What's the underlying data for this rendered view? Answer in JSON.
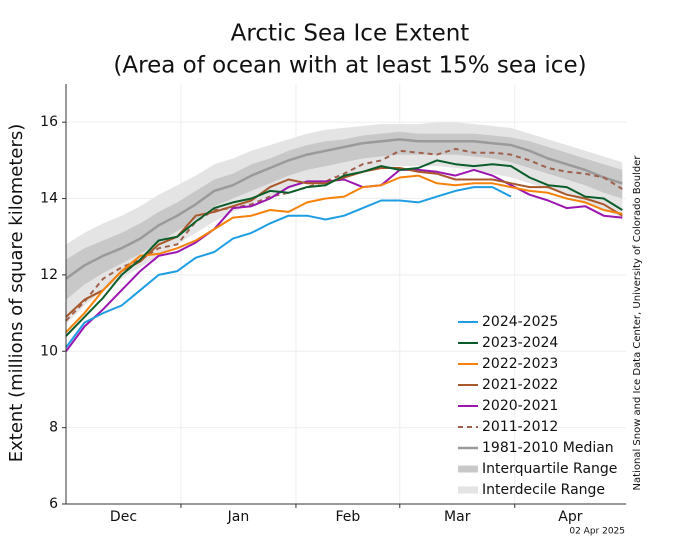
{
  "chart_data": {
    "type": "line",
    "title": "Arctic Sea Ice Extent",
    "subtitle": "(Area of ocean with at least 15% sea ice)",
    "ylabel": "Extent (millions of square kilometers)",
    "credit": "National Snow and Ice Data Center, University of Colorado Boulder",
    "date_stamp": "02 Apr 2025",
    "legend": "lower right",
    "grid": true,
    "xlim": [
      0,
      151
    ],
    "xticks": [
      {
        "value": 15.5,
        "label": "Dec"
      },
      {
        "value": 46.5,
        "label": "Jan"
      },
      {
        "value": 76,
        "label": "Feb"
      },
      {
        "value": 105.5,
        "label": "Mar"
      },
      {
        "value": 136,
        "label": "Apr"
      }
    ],
    "xgrid": [
      31,
      62,
      90,
      121
    ],
    "ylim": [
      6,
      17
    ],
    "yticks": [
      6,
      8,
      10,
      12,
      14,
      16
    ],
    "x": [
      0,
      5,
      10,
      15,
      20,
      25,
      30,
      35,
      40,
      45,
      50,
      55,
      60,
      65,
      70,
      75,
      80,
      85,
      90,
      95,
      100,
      105,
      110,
      115,
      120,
      125,
      130,
      135,
      140,
      145,
      150
    ],
    "bands": [
      {
        "name": "Interdecile Range",
        "color": "#e4e4e4",
        "lower": [
          10.7,
          11.2,
          11.6,
          11.9,
          12.2,
          12.5,
          12.8,
          13.1,
          13.4,
          13.65,
          13.85,
          14.05,
          14.25,
          14.4,
          14.5,
          14.6,
          14.7,
          14.8,
          14.85,
          14.85,
          14.85,
          14.8,
          14.75,
          14.65,
          14.55,
          14.4,
          14.25,
          14.1,
          13.9,
          13.7,
          13.5
        ],
        "upper": [
          12.8,
          13.1,
          13.35,
          13.55,
          13.8,
          14.1,
          14.35,
          14.6,
          14.9,
          15.05,
          15.25,
          15.4,
          15.55,
          15.7,
          15.8,
          15.85,
          15.9,
          15.95,
          15.95,
          15.95,
          16.0,
          16.0,
          15.95,
          15.9,
          15.85,
          15.7,
          15.55,
          15.4,
          15.25,
          15.1,
          14.95
        ]
      },
      {
        "name": "Interquartile Range",
        "color": "#c8c8c8",
        "lower": [
          11.35,
          11.75,
          12.05,
          12.3,
          12.55,
          12.85,
          13.15,
          13.45,
          13.8,
          14.0,
          14.2,
          14.4,
          14.6,
          14.75,
          14.85,
          14.95,
          15.05,
          15.1,
          15.15,
          15.15,
          15.15,
          15.15,
          15.1,
          15.05,
          14.95,
          14.8,
          14.65,
          14.5,
          14.35,
          14.15,
          14.0
        ],
        "upper": [
          12.4,
          12.7,
          12.9,
          13.1,
          13.35,
          13.65,
          13.9,
          14.2,
          14.5,
          14.65,
          14.9,
          15.05,
          15.25,
          15.4,
          15.5,
          15.55,
          15.65,
          15.7,
          15.75,
          15.7,
          15.7,
          15.7,
          15.7,
          15.65,
          15.6,
          15.5,
          15.35,
          15.2,
          15.05,
          14.9,
          14.75
        ]
      }
    ],
    "series": [
      {
        "name": "2024-2025",
        "color": "#1f9de3",
        "values": [
          10.1,
          10.75,
          11.0,
          11.2,
          11.6,
          12.0,
          12.1,
          12.45,
          12.6,
          12.95,
          13.1,
          13.35,
          13.55,
          13.55,
          13.45,
          13.55,
          13.75,
          13.95,
          13.95,
          13.9,
          14.05,
          14.2,
          14.3,
          14.3,
          14.05,
          null,
          null,
          null,
          null,
          null,
          null
        ]
      },
      {
        "name": "2023-2024",
        "color": "#0b5e2b",
        "values": [
          10.4,
          10.9,
          11.4,
          12.0,
          12.4,
          12.9,
          13.0,
          13.4,
          13.75,
          13.9,
          14.0,
          14.2,
          14.15,
          14.3,
          14.35,
          14.6,
          14.7,
          14.85,
          14.75,
          14.8,
          15.0,
          14.9,
          14.85,
          14.9,
          14.85,
          14.55,
          14.35,
          14.3,
          14.05,
          14.0,
          13.7
        ]
      },
      {
        "name": "2022-2023",
        "color": "#f5820b",
        "values": [
          10.5,
          11.0,
          11.6,
          12.1,
          12.5,
          12.55,
          12.7,
          12.9,
          13.2,
          13.5,
          13.55,
          13.7,
          13.65,
          13.9,
          14.0,
          14.05,
          14.3,
          14.35,
          14.55,
          14.6,
          14.4,
          14.35,
          14.4,
          14.4,
          14.3,
          14.2,
          14.15,
          14.0,
          13.9,
          13.7,
          13.6
        ]
      },
      {
        "name": "2021-2022",
        "color": "#a8582a",
        "values": [
          10.9,
          11.35,
          11.6,
          12.1,
          12.35,
          12.8,
          13.0,
          13.55,
          13.65,
          13.8,
          13.95,
          14.3,
          14.5,
          14.4,
          14.4,
          14.55,
          14.7,
          14.8,
          14.8,
          14.7,
          14.65,
          14.5,
          14.5,
          14.5,
          14.4,
          14.3,
          14.3,
          14.1,
          14.0,
          13.85,
          13.55
        ]
      },
      {
        "name": "2020-2021",
        "color": "#9b16b0",
        "values": [
          10.0,
          10.65,
          11.1,
          11.6,
          12.1,
          12.5,
          12.6,
          12.85,
          13.2,
          13.75,
          13.8,
          14.0,
          14.3,
          14.45,
          14.45,
          14.5,
          14.3,
          14.35,
          14.75,
          14.75,
          14.7,
          14.6,
          14.75,
          14.6,
          14.35,
          14.1,
          13.95,
          13.75,
          13.8,
          13.55,
          13.5
        ]
      },
      {
        "name": "2011-2012",
        "color": "#a0614d",
        "dashed": true,
        "values": [
          10.8,
          11.3,
          11.9,
          12.2,
          12.4,
          12.7,
          12.8,
          13.4,
          13.7,
          13.75,
          13.85,
          14.05,
          14.15,
          14.3,
          14.45,
          14.65,
          14.9,
          15.0,
          15.25,
          15.2,
          15.15,
          15.3,
          15.2,
          15.2,
          15.15,
          15.0,
          14.8,
          14.7,
          14.65,
          14.55,
          14.25
        ]
      },
      {
        "name": "1981-2010 Median",
        "color": "#9a9a9a",
        "width": 2.5,
        "values": [
          11.9,
          12.25,
          12.5,
          12.7,
          12.95,
          13.3,
          13.55,
          13.85,
          14.2,
          14.35,
          14.6,
          14.8,
          15.0,
          15.15,
          15.25,
          15.35,
          15.45,
          15.5,
          15.55,
          15.5,
          15.5,
          15.5,
          15.5,
          15.45,
          15.4,
          15.25,
          15.05,
          14.9,
          14.75,
          14.55,
          14.4
        ]
      }
    ]
  }
}
